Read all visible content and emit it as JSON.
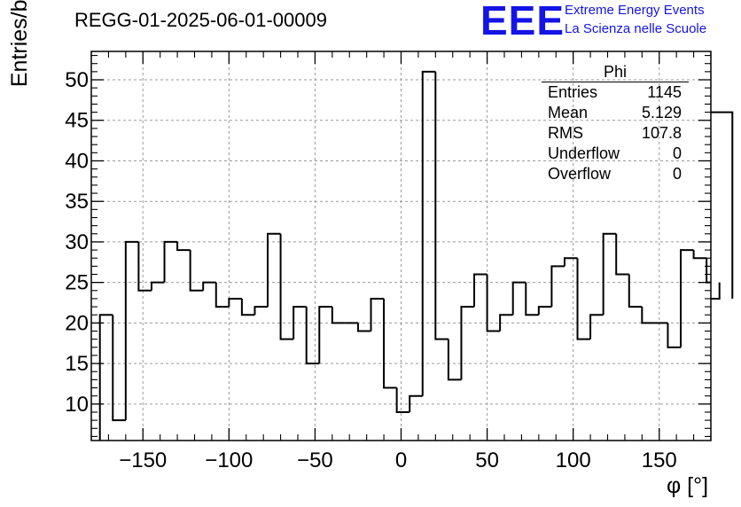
{
  "title": "REGG-01-2025-06-01-00009",
  "logo": {
    "mark": "EEE",
    "line1": "Extreme Energy Events",
    "line2": "La Scienza nelle Scuole",
    "color": "#1414e6"
  },
  "stats_box": {
    "title": "Phi",
    "rows": [
      {
        "label": "Entries",
        "value": "1145"
      },
      {
        "label": "Mean",
        "value": "5.129"
      },
      {
        "label": "RMS",
        "value": "107.8"
      },
      {
        "label": "Underflow",
        "value": "0"
      },
      {
        "label": "Overflow",
        "value": "0"
      }
    ]
  },
  "chart_data": {
    "type": "bar",
    "style": "step-histogram",
    "title": "REGG-01-2025-06-01-00009",
    "xlabel": "φ [°]",
    "ylabel": "Entries/bin",
    "xlim": [
      -180,
      180
    ],
    "ylim": [
      5.5,
      53.5
    ],
    "bin_edges_start": -175,
    "bin_width": 7.5,
    "values": [
      21,
      8,
      30,
      24,
      25,
      30,
      29,
      24,
      25,
      22,
      23,
      21,
      22,
      31,
      18,
      22,
      15,
      22,
      20,
      20,
      19,
      23,
      12,
      9,
      11,
      51,
      18,
      13,
      22,
      26,
      19,
      21,
      25,
      21,
      22,
      27,
      28,
      18,
      21,
      31,
      26,
      22,
      20,
      20,
      17,
      29,
      28,
      25,
      23,
      46
    ],
    "x_ticks": [
      -150,
      -100,
      -50,
      0,
      50,
      100,
      150
    ],
    "x_tick_labels": [
      "−150",
      "−100",
      "−50",
      "0",
      "50",
      "100",
      "150"
    ],
    "y_ticks": [
      10,
      15,
      20,
      25,
      30,
      35,
      40,
      45,
      50
    ],
    "y_tick_labels": [
      "10",
      "15",
      "20",
      "25",
      "30",
      "35",
      "40",
      "45",
      "50"
    ],
    "grid": true,
    "line_color": "#000000",
    "grid_color": "#9a9a9a"
  }
}
